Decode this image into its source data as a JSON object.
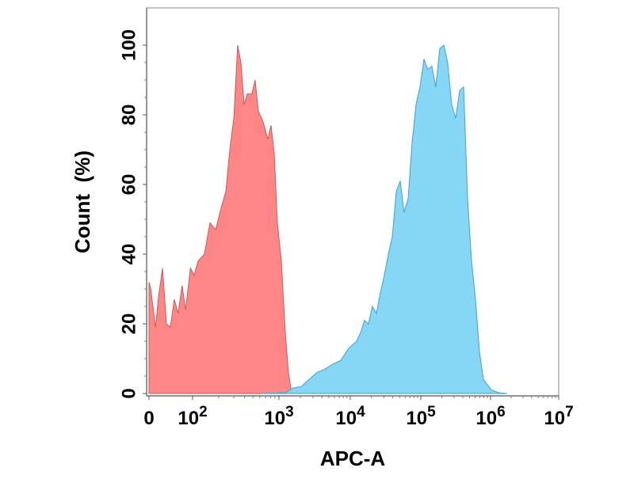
{
  "chart_data": {
    "type": "area",
    "title": "",
    "xlabel": "APC-A",
    "ylabel": "Count  (%)",
    "x_scale": "biexponential (log above 10^2)",
    "xlim": [
      0,
      10000000
    ],
    "ylim": [
      0,
      100
    ],
    "grid": false,
    "legend": "none",
    "x_ticks": [
      {
        "value": 0,
        "base": "0",
        "exp": ""
      },
      {
        "value": 100,
        "base": "10",
        "exp": "2"
      },
      {
        "value": 1000,
        "base": "10",
        "exp": "3"
      },
      {
        "value": 10000,
        "base": "10",
        "exp": "4"
      },
      {
        "value": 100000,
        "base": "10",
        "exp": "5"
      },
      {
        "value": 1000000,
        "base": "10",
        "exp": "6"
      },
      {
        "value": 10000000,
        "base": "10",
        "exp": "7"
      }
    ],
    "y_ticks": [
      "0",
      "20",
      "40",
      "60",
      "80",
      "100"
    ],
    "series": [
      {
        "color": "#ff7f7f",
        "stroke": "#c85a5a",
        "x": [
          0,
          4,
          15,
          22,
          31,
          40,
          49,
          58,
          67,
          76,
          84,
          95,
          104,
          116,
          137,
          159,
          185,
          218,
          243,
          270,
          300,
          333,
          363,
          395,
          430,
          487,
          530,
          577,
          655,
          744,
          810,
          881,
          959,
          1080,
          1230,
          1360,
          1510
        ],
        "y": [
          32,
          30,
          19,
          28,
          36,
          20,
          19,
          27,
          23,
          31,
          24,
          36,
          34,
          38,
          40,
          49,
          47,
          54,
          58,
          70,
          79,
          100,
          95,
          83,
          86,
          86,
          90,
          81,
          78,
          73,
          77,
          69,
          49,
          38,
          17,
          6,
          0
        ]
      },
      {
        "color": "#80d4f4",
        "stroke": "#4a9fc2",
        "x": [
          641,
          1230,
          1585,
          2050,
          2640,
          3410,
          4410,
          5700,
          7360,
          9500,
          12300,
          14000,
          15900,
          18100,
          20600,
          23500,
          26700,
          30400,
          34600,
          39400,
          44900,
          51000,
          58000,
          66100,
          75200,
          85600,
          97400,
          111000,
          126000,
          144000,
          164000,
          187000,
          214000,
          243000,
          277000,
          316000,
          360000,
          411000,
          468000,
          533000,
          608000,
          693000,
          790000,
          1030000,
          1340000,
          1750000
        ],
        "y": [
          0,
          0.2,
          1.6,
          2,
          4,
          6,
          7,
          8.4,
          9.5,
          13,
          15,
          17.5,
          21,
          20,
          25,
          23,
          29,
          34,
          40,
          45,
          58,
          61,
          52,
          56,
          72,
          83,
          88,
          96,
          93,
          94,
          88,
          99,
          100,
          95,
          83,
          79,
          87,
          88,
          56,
          38,
          27,
          12,
          4,
          1,
          0.2,
          0
        ]
      }
    ]
  }
}
